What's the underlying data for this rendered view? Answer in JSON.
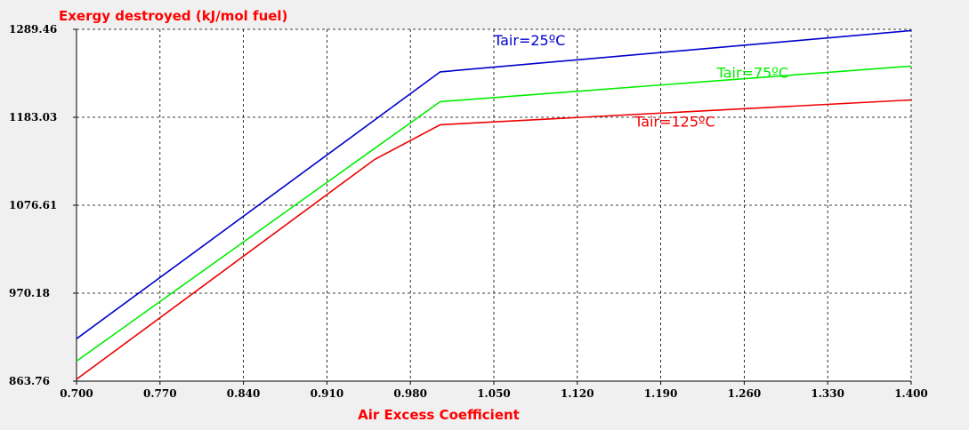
{
  "chart_data": {
    "type": "line",
    "title": "",
    "ylabel": "Exergy destroyed (kJ/mol fuel)",
    "xlabel": "Air Excess Coefficient",
    "xlim": [
      0.7,
      1.4
    ],
    "ylim": [
      863.76,
      1289.46
    ],
    "x_ticks": [
      "0.700",
      "0.770",
      "0.840",
      "0.910",
      "0.980",
      "1.050",
      "1.120",
      "1.190",
      "1.260",
      "1.330",
      "1.400"
    ],
    "y_ticks": [
      "863.76",
      "970.18",
      "1076.61",
      "1183.03",
      "1289.46"
    ],
    "grid": true,
    "label_color": "#ff0000",
    "series": [
      {
        "name": "Tair=25ºC",
        "color": "#0000cc",
        "label_at": [
          1.05,
          1270
        ],
        "points": [
          [
            0.7,
            915
          ],
          [
            1.005,
            1238
          ],
          [
            1.4,
            1288
          ]
        ]
      },
      {
        "name": "Tair=75ºC",
        "color": "#00ee00",
        "label_at": [
          1.237,
          1231
        ],
        "points": [
          [
            0.7,
            888
          ],
          [
            1.005,
            1202
          ],
          [
            1.4,
            1245
          ]
        ]
      },
      {
        "name": "Tair=125ºC",
        "color": "#ee0000",
        "label_at": [
          1.168,
          1172
        ],
        "points": [
          [
            0.7,
            866
          ],
          [
            0.95,
            1132
          ],
          [
            1.005,
            1174
          ],
          [
            1.4,
            1204
          ]
        ]
      }
    ]
  }
}
